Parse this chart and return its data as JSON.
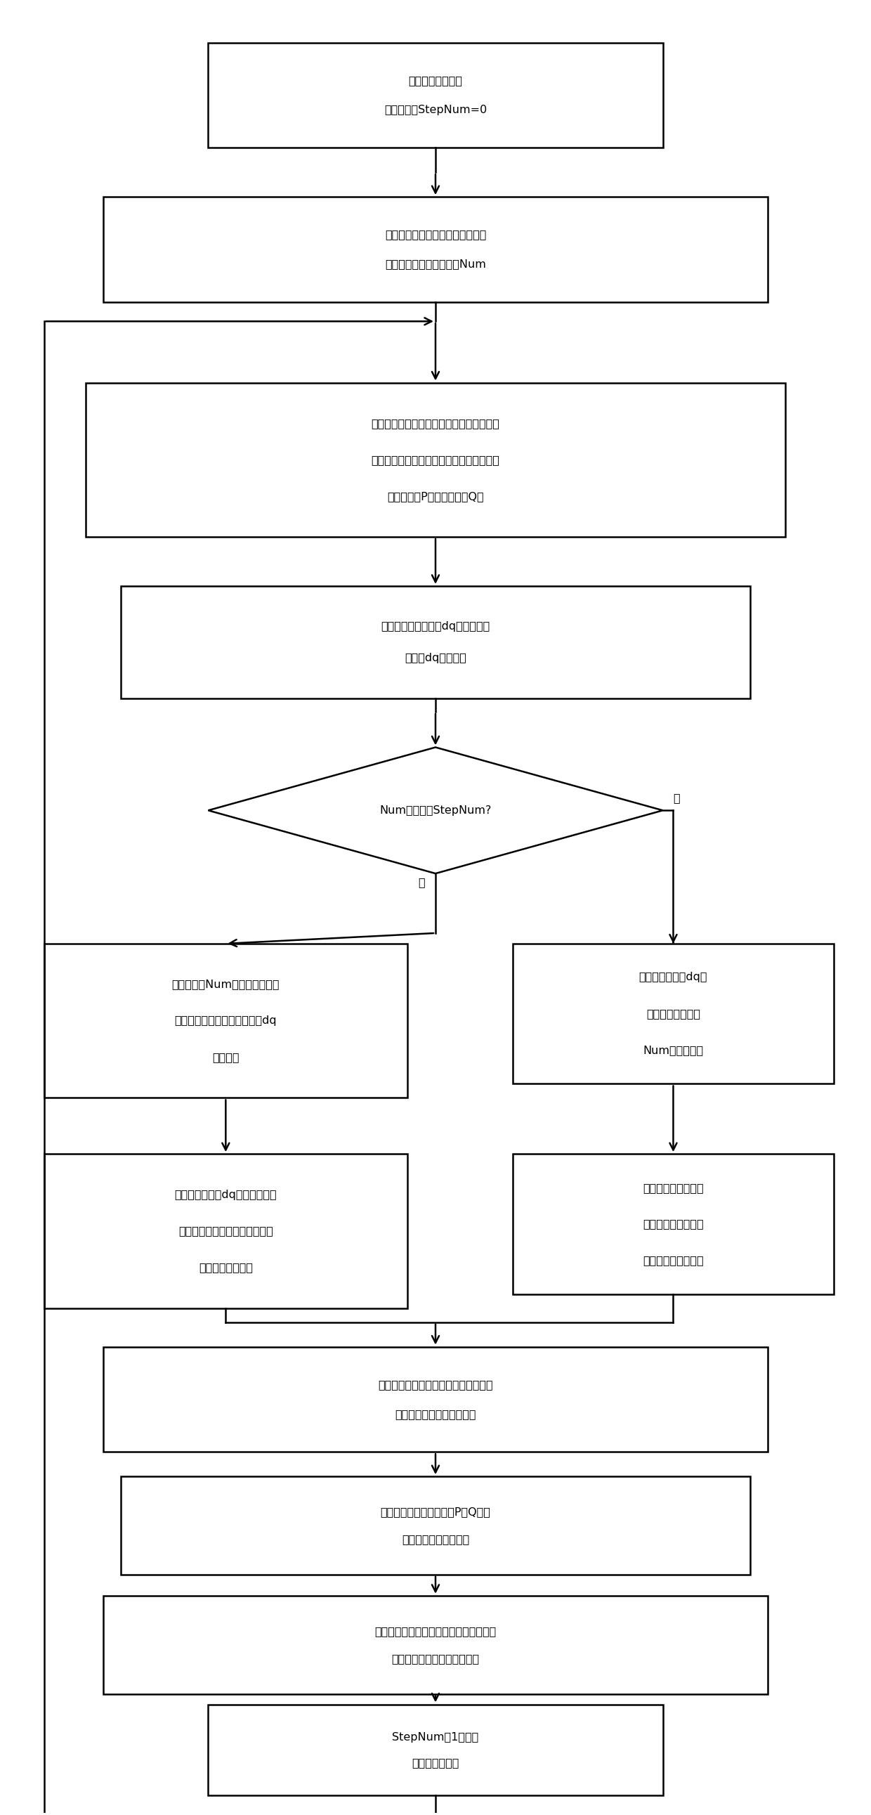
{
  "bg_color": "#ffffff",
  "box_edge_color": "#000000",
  "text_color": "#000000",
  "lw": 1.8,
  "font_size": 11.5,
  "fig_w": 12.4,
  "fig_h": 25.83,
  "box1_lines": [
    "数据变量初始化，",
    "令步长个数StepNum=0"
  ],
  "box2_lines": [
    "获取电网模型的计算步长，求得运",
    "算半个周期所需的步长数Num"
  ],
  "box3_lines": [
    "获取电网模型中风电接入点的三相瞬时电压",
    "及其初始相角，获取风电场详细仿真机发送",
    "的有功功率P值和无功功率Q值"
  ],
  "box4_lines": [
    "对三相瞬时电压进行dq变换，求取",
    "各相的dq基波分量"
  ],
  "diamond_lines": [
    "Num是否小于StepNum?"
  ],
  "box5_lines": [
    "更新长度为Num的缓存数组中的",
    "数据，存入新的三相瞬时电压dq",
    "基波分量"
  ],
  "box6_lines": [
    "将三相瞬时电压dq基",
    "波分量存入长度为",
    "Num的缓存数组"
  ],
  "box7_lines": [
    "求三相瞬时电压dq基波分量半个",
    "周期的平均值，从而求得三相瞬",
    "时电压的基波相量"
  ],
  "box8_lines": [
    "根据三相电压初始幅",
    "值和相角，求得三相",
    "瞬时电压的基波相量"
  ],
  "box9_lines": [
    "对三相瞬时电压的基波相量进行相序变",
    "换，求得三相基波正序电压"
  ],
  "box10_lines": [
    "根据三相基波正序电压及P、Q值，",
    "求得三相基波正序电流"
  ],
  "box11_lines": [
    "将三相基波正、负、零序电流进行序相变",
    "换，求得三相瞬时电流，输出"
  ],
  "box12_lines": [
    "StepNum加1，进入",
    "下一步长的计算"
  ],
  "yes_label": "是",
  "no_label": "否"
}
